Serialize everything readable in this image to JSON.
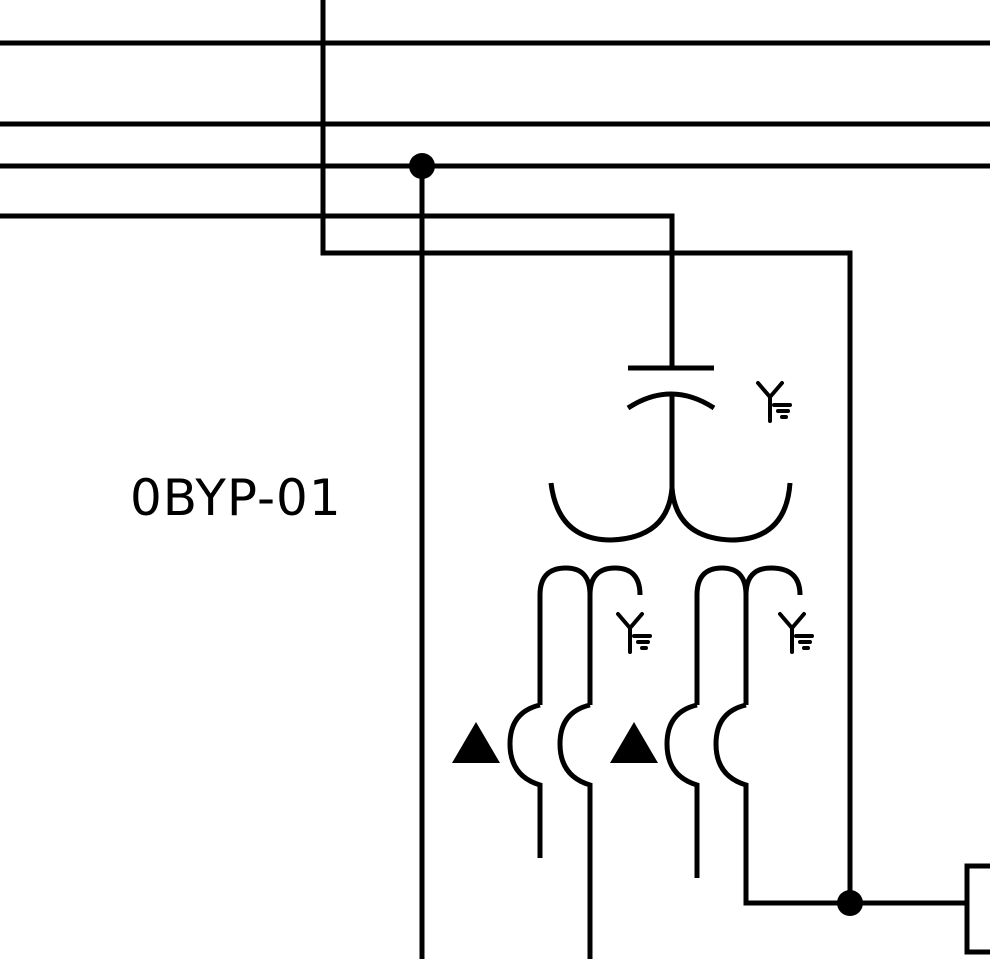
{
  "diagram": {
    "device_label": "0BYP-01",
    "colors": {
      "background": "#ffffff",
      "line": "#000000"
    },
    "symbols": {
      "transformer_winding_connection": "wye-grounded-icon",
      "ct_polarity_marker": "triangle-polarity-icon",
      "junction": "junction-dot-icon",
      "capacitor": "capacitor-icon"
    }
  }
}
